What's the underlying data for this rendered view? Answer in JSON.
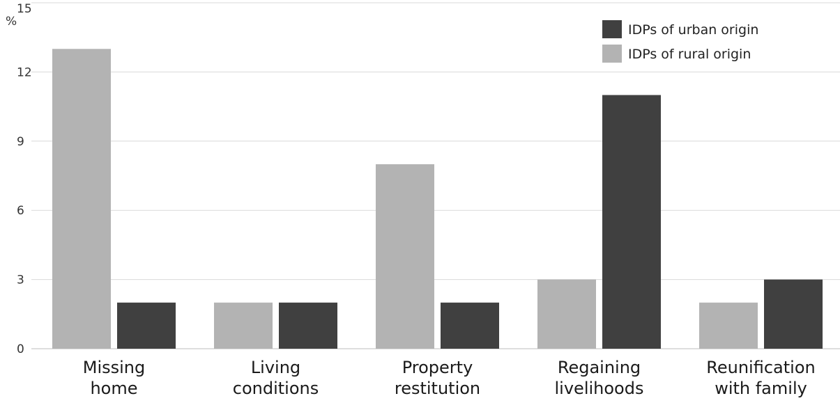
{
  "chart_data": {
    "type": "bar",
    "title": "",
    "xlabel": "",
    "ylabel": "%",
    "ylim": [
      0,
      15
    ],
    "yticks": [
      0,
      3,
      6,
      9,
      12,
      15
    ],
    "grid": true,
    "legend_position": "top-right",
    "categories": [
      [
        "Missing",
        "home"
      ],
      [
        "Living",
        "conditions"
      ],
      [
        "Property",
        "restitution"
      ],
      [
        "Regaining",
        "livelihoods"
      ],
      [
        "Reunification",
        "with family"
      ]
    ],
    "series": [
      {
        "name": "IDPs of rural origin",
        "color": "#b3b3b3",
        "values": [
          13,
          2,
          8,
          3,
          2
        ]
      },
      {
        "name": "IDPs of urban origin",
        "color": "#404040",
        "values": [
          2,
          2,
          2,
          11,
          3
        ]
      }
    ],
    "legend_order": [
      1,
      0
    ]
  }
}
